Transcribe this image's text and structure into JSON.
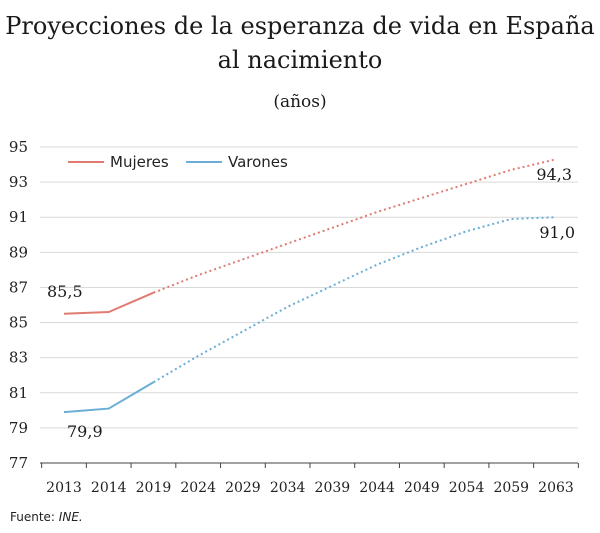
{
  "chart_data": {
    "type": "line",
    "title": "Proyecciones de la esperanza de vida en España",
    "title_line2": "al nacimiento",
    "subtitle": "(años)",
    "categories": [
      "2013",
      "2014",
      "2019",
      "2024",
      "2029",
      "2034",
      "2039",
      "2044",
      "2049",
      "2054",
      "2059",
      "2063"
    ],
    "ylim": [
      77,
      95
    ],
    "yticks": [
      "77",
      "79",
      "81",
      "83",
      "85",
      "87",
      "89",
      "91",
      "93",
      "95"
    ],
    "grid": true,
    "legend_position": "top-left",
    "series": [
      {
        "name": "Mujeres",
        "color": "#e07b72",
        "values": [
          85.5,
          85.6,
          86.7,
          87.7,
          88.6,
          89.5,
          90.4,
          91.3,
          92.1,
          92.9,
          93.7,
          94.3
        ],
        "observed_through": "2019",
        "first_label": "85,5",
        "last_label": "94,3"
      },
      {
        "name": "Varones",
        "color": "#6aaed6",
        "values": [
          79.9,
          80.1,
          81.6,
          83.1,
          84.5,
          85.9,
          87.1,
          88.3,
          89.3,
          90.2,
          90.9,
          91.0
        ],
        "observed_through": "2019",
        "first_label": "79,9",
        "last_label": "91,0"
      }
    ]
  },
  "source": {
    "prefix": "Fuente: ",
    "name": "INE."
  }
}
